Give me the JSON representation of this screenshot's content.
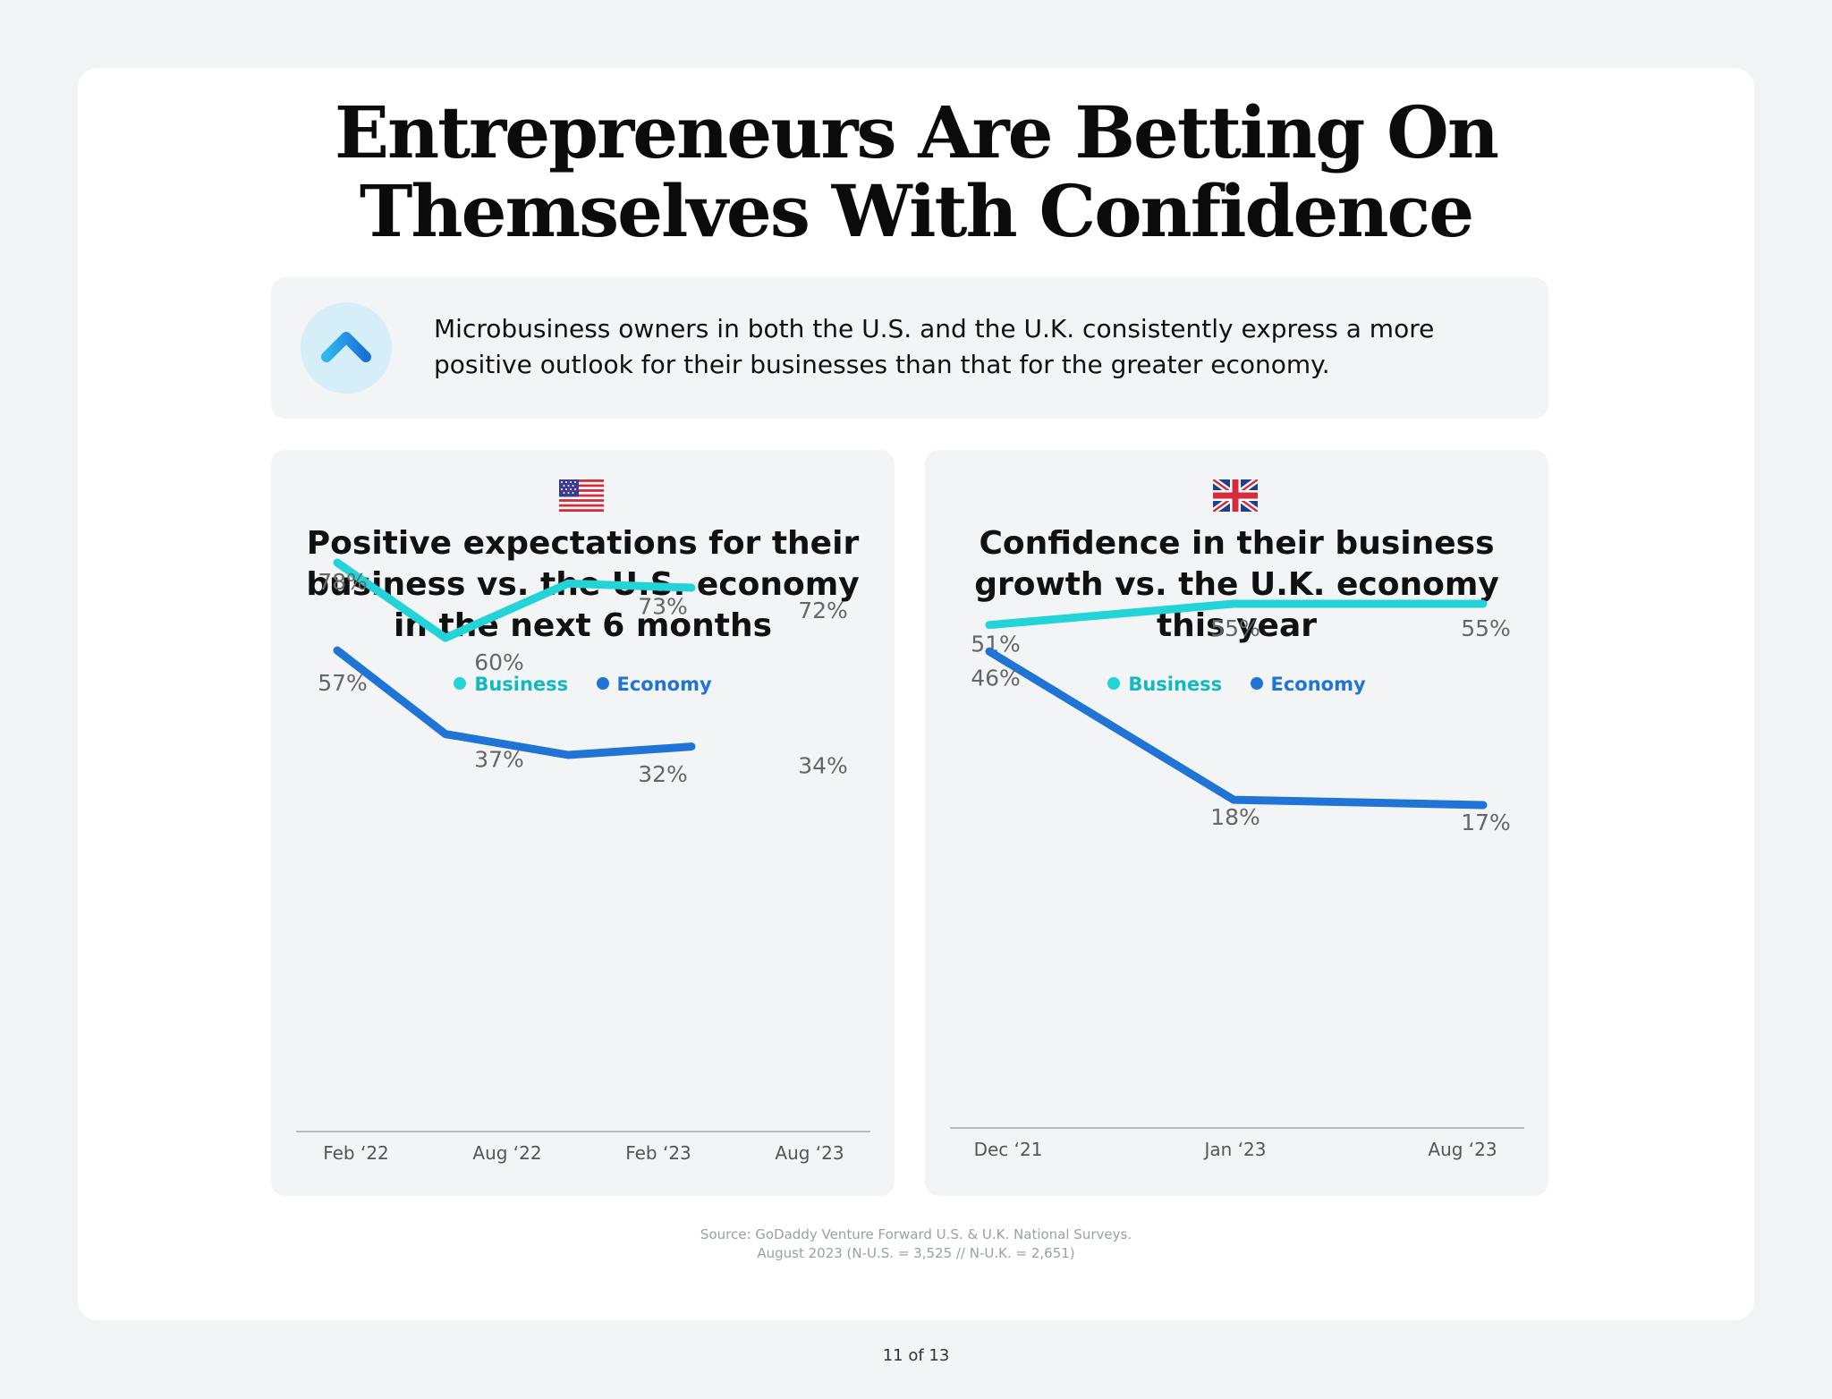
{
  "title": {
    "line1": "Entrepreneurs Are Betting On",
    "line2": "Themselves With Confidence"
  },
  "callout": {
    "icon": "chevron-up-icon",
    "text": "Microbusiness owners in both the U.S. and the U.K. consistently express a more positive outlook for their businesses than that for the greater economy."
  },
  "colors": {
    "business": "#22d3d8",
    "economy": "#1f74d6",
    "value_label": "#666666",
    "axis": "#b8bcc2"
  },
  "chart_data": [
    {
      "type": "line",
      "flag": "us-flag-icon",
      "title": "Positive expectations for their business vs. the U.S. economy in the next 6 months",
      "legend": [
        "Business",
        "Economy"
      ],
      "categories": [
        "Feb ‘22",
        "Aug ‘22",
        "Feb ‘23",
        "Aug ‘23"
      ],
      "series": [
        {
          "name": "Business",
          "values": [
            78,
            60,
            73,
            72
          ],
          "labels": [
            "78%",
            "60%",
            "73%",
            "72%"
          ]
        },
        {
          "name": "Economy",
          "values": [
            57,
            37,
            32,
            34
          ],
          "labels": [
            "57%",
            "37%",
            "32%",
            "34%"
          ]
        }
      ],
      "ylim": [
        0,
        100
      ],
      "grid": false
    },
    {
      "type": "line",
      "flag": "uk-flag-icon",
      "title": "Confidence in their business growth vs. the U.K. economy this year",
      "legend": [
        "Business",
        "Economy"
      ],
      "categories": [
        "Dec ‘21",
        "Jan ‘23",
        "Aug ‘23"
      ],
      "series": [
        {
          "name": "Business",
          "values": [
            51,
            55,
            55
          ],
          "labels": [
            "51%",
            "55%",
            "55%"
          ]
        },
        {
          "name": "Economy",
          "values": [
            46,
            18,
            17
          ],
          "labels": [
            "46%",
            "18%",
            "17%"
          ]
        }
      ],
      "ylim": [
        0,
        100
      ],
      "grid": false
    }
  ],
  "source": {
    "line1": "Source: GoDaddy Venture Forward U.S. & U.K. National Surveys.",
    "line2": "August 2023 (N-U.S. = 3,525 // N-U.K. = 2,651)"
  },
  "pager": "11 of 13"
}
